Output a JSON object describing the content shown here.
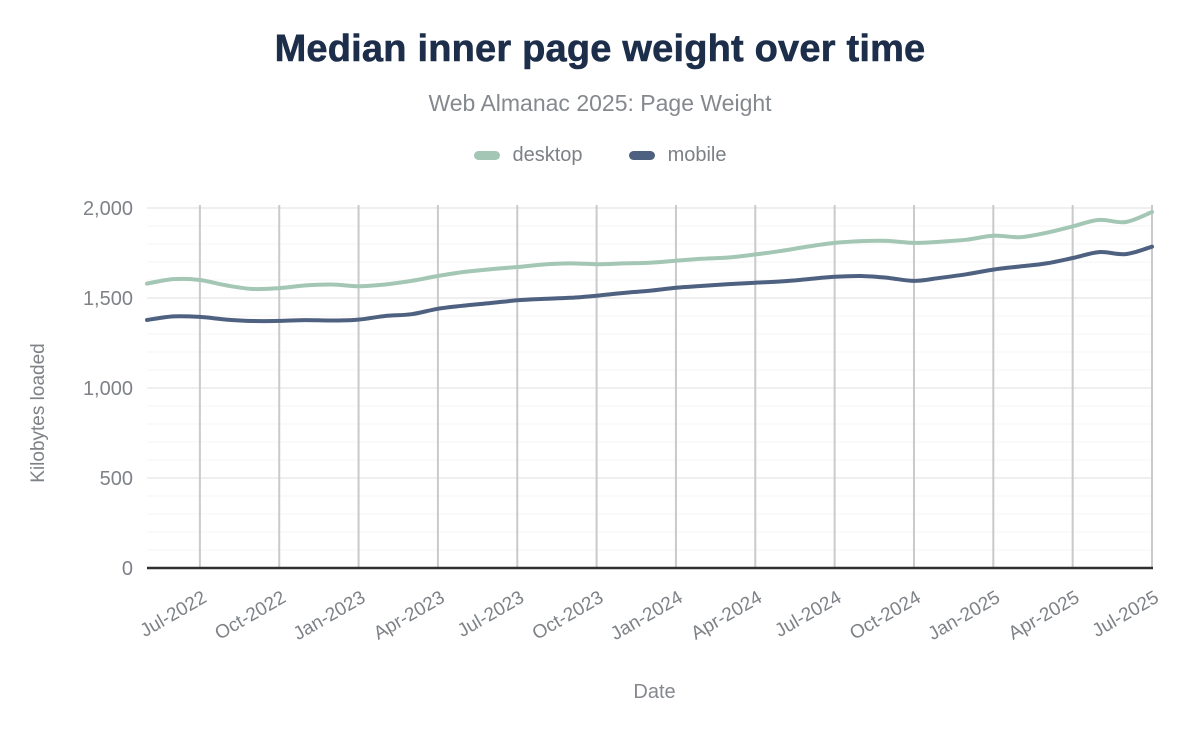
{
  "header": {
    "title": "Median inner page weight over time",
    "subtitle": "Web Almanac 2025: Page Weight"
  },
  "chart_data": {
    "type": "line",
    "title": "Median inner page weight over time",
    "subtitle": "Web Almanac 2025: Page Weight",
    "xlabel": "Date",
    "ylabel": "Kilobytes loaded",
    "legend_position": "top",
    "grid": "on",
    "ylim": [
      0,
      2000
    ],
    "y_ticks": [
      0,
      500,
      1000,
      1500,
      2000
    ],
    "y_tick_labels": [
      "0",
      "500",
      "1,000",
      "1,500",
      "2,000"
    ],
    "minor_grid_step": 100,
    "x": [
      "May-2022",
      "Jun-2022",
      "Jul-2022",
      "Aug-2022",
      "Sep-2022",
      "Oct-2022",
      "Nov-2022",
      "Dec-2022",
      "Jan-2023",
      "Feb-2023",
      "Mar-2023",
      "Apr-2023",
      "May-2023",
      "Jun-2023",
      "Jul-2023",
      "Aug-2023",
      "Sep-2023",
      "Oct-2023",
      "Nov-2023",
      "Dec-2023",
      "Jan-2024",
      "Feb-2024",
      "Mar-2024",
      "Apr-2024",
      "May-2024",
      "Jun-2024",
      "Jul-2024",
      "Aug-2024",
      "Sep-2024",
      "Oct-2024",
      "Nov-2024",
      "Dec-2024",
      "Jan-2025",
      "Feb-2025",
      "Mar-2025",
      "Apr-2025",
      "May-2025",
      "Jun-2025",
      "Jul-2025"
    ],
    "x_tick_labels": [
      "Jul-2022",
      "Oct-2022",
      "Jan-2023",
      "Apr-2023",
      "Jul-2023",
      "Oct-2023",
      "Jan-2024",
      "Apr-2024",
      "Jul-2024",
      "Oct-2024",
      "Jan-2025",
      "Apr-2025",
      "Jul-2025"
    ],
    "series": [
      {
        "name": "desktop",
        "color": "#a3c7b4",
        "values": [
          1580,
          1605,
          1600,
          1570,
          1550,
          1555,
          1570,
          1575,
          1565,
          1575,
          1595,
          1622,
          1645,
          1660,
          1672,
          1686,
          1692,
          1688,
          1692,
          1696,
          1707,
          1718,
          1725,
          1742,
          1762,
          1786,
          1806,
          1816,
          1817,
          1806,
          1813,
          1824,
          1846,
          1838,
          1862,
          1898,
          1934,
          1922,
          1978
        ]
      },
      {
        "name": "mobile",
        "color": "#4e6180",
        "values": [
          1378,
          1398,
          1395,
          1380,
          1372,
          1373,
          1377,
          1375,
          1380,
          1400,
          1410,
          1440,
          1458,
          1472,
          1487,
          1495,
          1501,
          1513,
          1528,
          1540,
          1557,
          1567,
          1577,
          1585,
          1592,
          1605,
          1618,
          1622,
          1612,
          1595,
          1612,
          1632,
          1658,
          1675,
          1692,
          1722,
          1755,
          1744,
          1785
        ]
      }
    ]
  },
  "colors": {
    "title": "#1c2e4a",
    "subtitle_text": "#85898e",
    "tick_text": "#7e8287",
    "axis_line": "#303030",
    "vertical_grid": "#c9cacb",
    "major_horizontal_grid": "#efefef",
    "minor_horizontal_grid": "#fafafa",
    "desktop_series": "#a3c7b4",
    "mobile_series": "#4e6180"
  }
}
